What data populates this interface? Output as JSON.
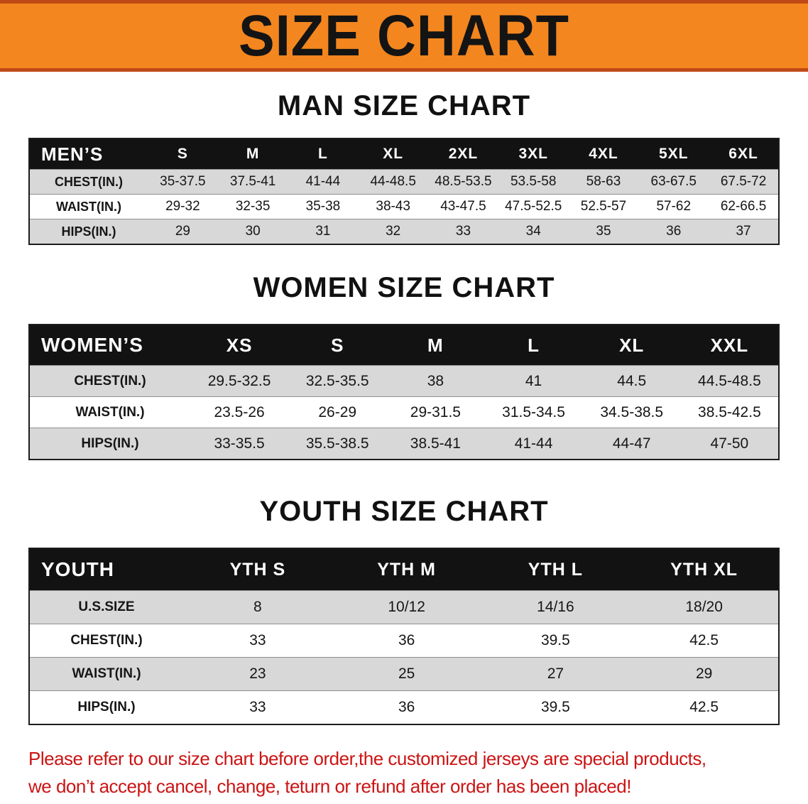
{
  "banner": {
    "title": "SIZE CHART"
  },
  "colors": {
    "banner_orange": "#f4861f",
    "banner_edge": "#bf4a16",
    "table_header_black": "#121212",
    "row_gray": "#d8d8d8",
    "disclaimer_red": "#cc1414"
  },
  "sections": [
    {
      "id": "men",
      "heading": "MAN SIZE CHART",
      "table": {
        "header": [
          "MEN’S",
          "S",
          "M",
          "L",
          "XL",
          "2XL",
          "3XL",
          "4XL",
          "5XL",
          "6XL"
        ],
        "rows": [
          [
            "CHEST(IN.)",
            "35-37.5",
            "37.5-41",
            "41-44",
            "44-48.5",
            "48.5-53.5",
            "53.5-58",
            "58-63",
            "63-67.5",
            "67.5-72"
          ],
          [
            "WAIST(IN.)",
            "29-32",
            "32-35",
            "35-38",
            "38-43",
            "43-47.5",
            "47.5-52.5",
            "52.5-57",
            "57-62",
            "62-66.5"
          ],
          [
            "HIPS(IN.)",
            "29",
            "30",
            "31",
            "32",
            "33",
            "34",
            "35",
            "36",
            "37"
          ]
        ]
      }
    },
    {
      "id": "women",
      "heading": "WOMEN SIZE CHART",
      "table": {
        "header": [
          "WOMEN’S",
          "XS",
          "S",
          "M",
          "L",
          "XL",
          "XXL"
        ],
        "rows": [
          [
            "CHEST(IN.)",
            "29.5-32.5",
            "32.5-35.5",
            "38",
            "41",
            "44.5",
            "44.5-48.5"
          ],
          [
            "WAIST(IN.)",
            "23.5-26",
            "26-29",
            "29-31.5",
            "31.5-34.5",
            "34.5-38.5",
            "38.5-42.5"
          ],
          [
            "HIPS(IN.)",
            "33-35.5",
            "35.5-38.5",
            "38.5-41",
            "41-44",
            "44-47",
            "47-50"
          ]
        ]
      }
    },
    {
      "id": "youth",
      "heading": "YOUTH SIZE CHART",
      "table": {
        "header": [
          "YOUTH",
          "YTH S",
          "YTH M",
          "YTH L",
          "YTH XL"
        ],
        "rows": [
          [
            "U.S.SIZE",
            "8",
            "10/12",
            "14/16",
            "18/20"
          ],
          [
            "CHEST(IN.)",
            "33",
            "36",
            "39.5",
            "42.5"
          ],
          [
            "WAIST(IN.)",
            "23",
            "25",
            "27",
            "29"
          ],
          [
            "HIPS(IN.)",
            "33",
            "36",
            "39.5",
            "42.5"
          ]
        ]
      }
    }
  ],
  "disclaimer": {
    "line1": "Please refer to our size chart before order,the customized jerseys are special products,",
    "line2": "we don’t accept cancel, change, teturn or refund after order has been placed!"
  }
}
